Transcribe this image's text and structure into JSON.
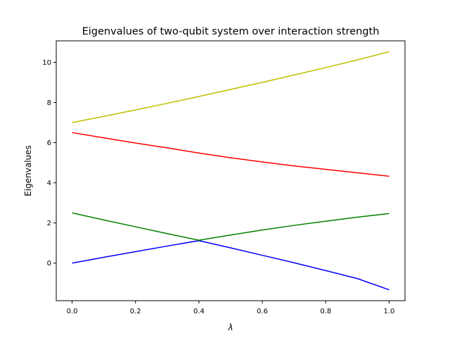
{
  "chart_data": {
    "type": "line",
    "title": "Eigenvalues of two-qubit system over interaction strength",
    "xlabel": "λ",
    "ylabel": "Eigenvalues",
    "xlim": [
      -0.05,
      1.05
    ],
    "ylim": [
      -1.87,
      11.07
    ],
    "xticks": [
      0.0,
      0.2,
      0.4,
      0.6,
      0.8,
      1.0
    ],
    "xtick_labels": [
      "0.0",
      "0.2",
      "0.4",
      "0.6",
      "0.8",
      "1.0"
    ],
    "yticks": [
      0,
      2,
      4,
      6,
      8,
      10
    ],
    "ytick_labels": [
      "0",
      "2",
      "4",
      "6",
      "8",
      "10"
    ],
    "grid": false,
    "legend": "none",
    "x": [
      0.0,
      0.1,
      0.2,
      0.3,
      0.4,
      0.5,
      0.6,
      0.7,
      0.8,
      0.9,
      1.0
    ],
    "series": [
      {
        "color": "#0000ff",
        "values": [
          0.0,
          0.29,
          0.57,
          0.85,
          1.12,
          0.76,
          0.39,
          0.02,
          -0.37,
          -0.77,
          -1.33
        ]
      },
      {
        "color": "#008000",
        "values": [
          2.5,
          2.15,
          1.81,
          1.47,
          1.14,
          1.4,
          1.65,
          1.88,
          2.09,
          2.29,
          2.47
        ]
      },
      {
        "color": "#ff0000",
        "values": [
          6.5,
          6.24,
          5.98,
          5.74,
          5.48,
          5.25,
          5.04,
          4.84,
          4.67,
          4.5,
          4.33
        ]
      },
      {
        "color": "#bfbf00",
        "values": [
          7.0,
          7.31,
          7.63,
          7.96,
          8.3,
          8.65,
          9.0,
          9.37,
          9.74,
          10.12,
          10.53
        ]
      }
    ]
  }
}
